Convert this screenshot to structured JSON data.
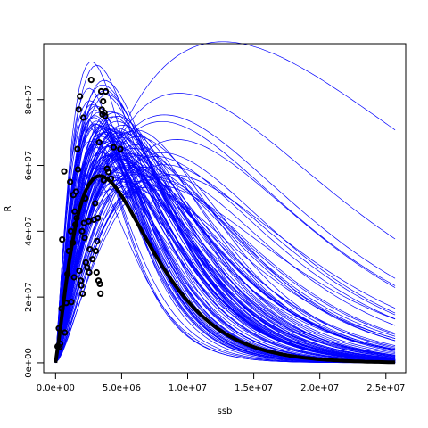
{
  "chart_data": {
    "type": "scatter",
    "xlabel": "ssb",
    "ylabel": "R",
    "xlim": [
      -900000,
      26500000
    ],
    "ylim": [
      -3000000,
      97000000
    ],
    "x_ticks": [
      {
        "value": 0,
        "label": "0.0e+00"
      },
      {
        "value": 5000000,
        "label": "5.0e+06"
      },
      {
        "value": 10000000,
        "label": "1.0e+07"
      },
      {
        "value": 15000000,
        "label": "1.5e+07"
      },
      {
        "value": 20000000,
        "label": "2.0e+07"
      },
      {
        "value": 25000000,
        "label": "2.5e+07"
      }
    ],
    "y_ticks": [
      {
        "value": 0,
        "label": "0e+00"
      },
      {
        "value": 20000000,
        "label": "2e+07"
      },
      {
        "value": 40000000,
        "label": "4e+07"
      },
      {
        "value": 60000000,
        "label": "6e+07"
      },
      {
        "value": 80000000,
        "label": "8e+07"
      }
    ],
    "grid": false,
    "colors": {
      "curves": "#0000ff",
      "mean_curve": "#000000",
      "points": "#000000"
    },
    "observations": {
      "x": [
        150000,
        250000,
        300000,
        350000,
        450000,
        500000,
        650000,
        700000,
        800000,
        900000,
        1000000,
        1100000,
        1150000,
        1200000,
        1300000,
        1350000,
        1400000,
        1450000,
        1500000,
        1550000,
        1600000,
        1650000,
        1700000,
        1750000,
        1800000,
        1850000,
        1900000,
        1950000,
        2000000,
        2050000,
        2100000,
        2150000,
        2200000,
        2250000,
        2300000,
        2400000,
        2500000,
        2550000,
        2600000,
        2700000,
        2800000,
        2900000,
        3000000,
        3050000,
        3100000,
        3150000,
        3200000,
        3250000,
        3300000,
        3350000,
        3400000,
        3450000,
        3500000,
        3550000,
        3600000,
        3650000,
        3700000,
        3750000,
        3800000,
        3900000,
        4000000,
        4200000,
        4400000,
        4900000
      ],
      "y": [
        5000000,
        10500000,
        4800000,
        5800000,
        16500000,
        37500000,
        58200000,
        9200000,
        18200000,
        27000000,
        34000000,
        55000000,
        40000000,
        18500000,
        36500000,
        51000000,
        26000000,
        46000000,
        42000000,
        52000000,
        44000000,
        65000000,
        58800000,
        77000000,
        28000000,
        81000000,
        25000000,
        23500000,
        40000000,
        21000000,
        74500000,
        42500000,
        38000000,
        50000000,
        30500000,
        29000000,
        43000000,
        27500000,
        34500000,
        86000000,
        31500000,
        43500000,
        48500000,
        34000000,
        27500000,
        37000000,
        44000000,
        25000000,
        67000000,
        24000000,
        21000000,
        82500000,
        77000000,
        75500000,
        79500000,
        55500000,
        76000000,
        75000000,
        82500000,
        59000000,
        58000000,
        56000000,
        65500000,
        65000000
      ]
    }
  }
}
